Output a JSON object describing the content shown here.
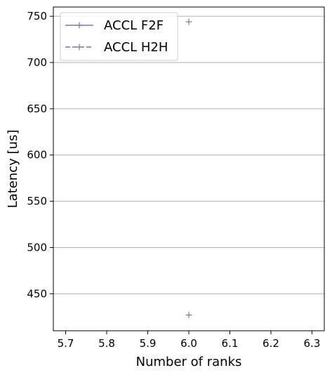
{
  "chart_data": {
    "type": "scatter",
    "title": "",
    "xlabel": "Number of ranks",
    "ylabel": "Latency [us]",
    "xlim": [
      5.67,
      6.33
    ],
    "ylim": [
      410,
      760
    ],
    "xticks": [
      5.7,
      5.8,
      5.9,
      6.0,
      6.1,
      6.2,
      6.3
    ],
    "xtick_labels": [
      "5.7",
      "5.8",
      "5.9",
      "6.0",
      "6.1",
      "6.2",
      "6.3"
    ],
    "yticks": [
      450,
      500,
      550,
      600,
      650,
      700,
      750
    ],
    "ytick_labels": [
      "450",
      "500",
      "550",
      "600",
      "650",
      "700",
      "750"
    ],
    "grid": "y",
    "legend_position": "top-left",
    "series": [
      {
        "name": "ACCL F2F",
        "x": [
          6.0
        ],
        "y": [
          427
        ],
        "color": "#9467bd",
        "linestyle": "solid",
        "marker": "+"
      },
      {
        "name": "ACCL H2H",
        "x": [
          6.0
        ],
        "y": [
          744
        ],
        "color": "#9467bd",
        "linestyle": "dashed",
        "marker": "+"
      }
    ]
  }
}
